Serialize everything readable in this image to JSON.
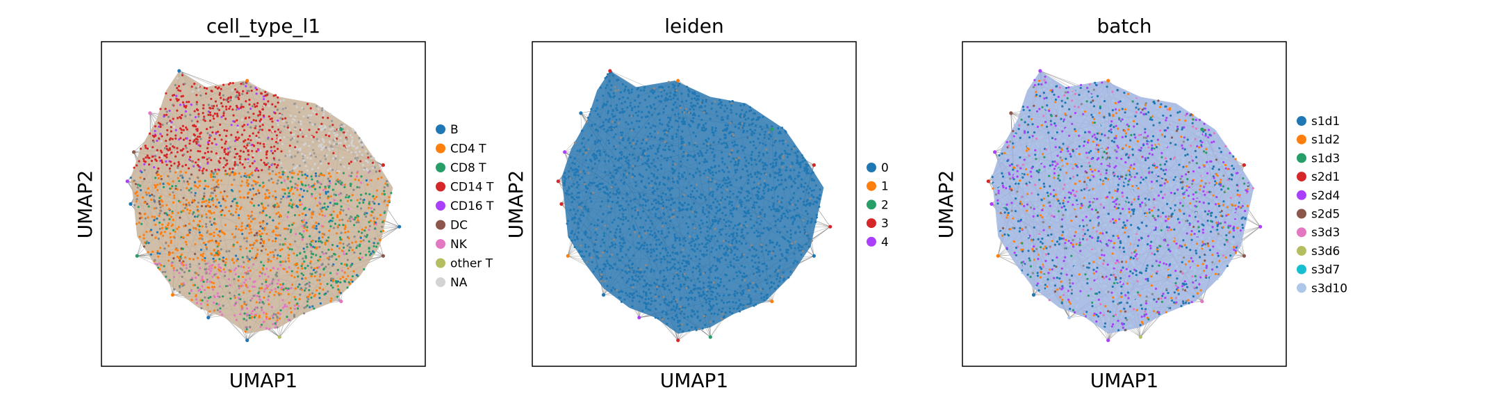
{
  "chart_data": [
    {
      "type": "scatter",
      "title": "cell_type_l1",
      "xlabel": "UMAP1",
      "ylabel": "UMAP2",
      "grid": false,
      "legend_position": "right",
      "legend": [
        {
          "label": "B",
          "color": "#1f77b4"
        },
        {
          "label": "CD4 T",
          "color": "#ff7f0e"
        },
        {
          "label": "CD8 T",
          "color": "#279e68"
        },
        {
          "label": "CD14 T",
          "color": "#d62728"
        },
        {
          "label": "CD16 T",
          "color": "#aa40fc"
        },
        {
          "label": "DC",
          "color": "#8c564b"
        },
        {
          "label": "NK",
          "color": "#e377c2"
        },
        {
          "label": "other T",
          "color": "#b5bd61"
        },
        {
          "label": "NA",
          "color": "#d3d3d3"
        }
      ],
      "edge_color": "#808080",
      "tri_color": "#1f77b4"
    },
    {
      "type": "scatter",
      "title": "leiden",
      "xlabel": "UMAP1",
      "ylabel": "UMAP2",
      "grid": false,
      "legend_position": "right",
      "legend": [
        {
          "label": "0",
          "color": "#1f77b4"
        },
        {
          "label": "1",
          "color": "#ff7f0e"
        },
        {
          "label": "2",
          "color": "#279e68"
        },
        {
          "label": "3",
          "color": "#d62728"
        },
        {
          "label": "4",
          "color": "#aa40fc"
        }
      ],
      "edge_color": "#808080",
      "tri_color": "#d62728"
    },
    {
      "type": "scatter",
      "title": "batch",
      "xlabel": "UMAP1",
      "ylabel": "UMAP2",
      "grid": false,
      "legend_position": "right",
      "legend": [
        {
          "label": "s1d1",
          "color": "#1f77b4"
        },
        {
          "label": "s1d2",
          "color": "#ff7f0e"
        },
        {
          "label": "s1d3",
          "color": "#279e68"
        },
        {
          "label": "s2d1",
          "color": "#d62728"
        },
        {
          "label": "s2d4",
          "color": "#aa40fc"
        },
        {
          "label": "s2d5",
          "color": "#8c564b"
        },
        {
          "label": "s3d3",
          "color": "#e377c2"
        },
        {
          "label": "s3d6",
          "color": "#b5bd61"
        },
        {
          "label": "s3d7",
          "color": "#17becf"
        },
        {
          "label": "s3d10",
          "color": "#aec7e8"
        }
      ],
      "edge_color": "#808080",
      "tri_color": "#aa40fc"
    }
  ]
}
